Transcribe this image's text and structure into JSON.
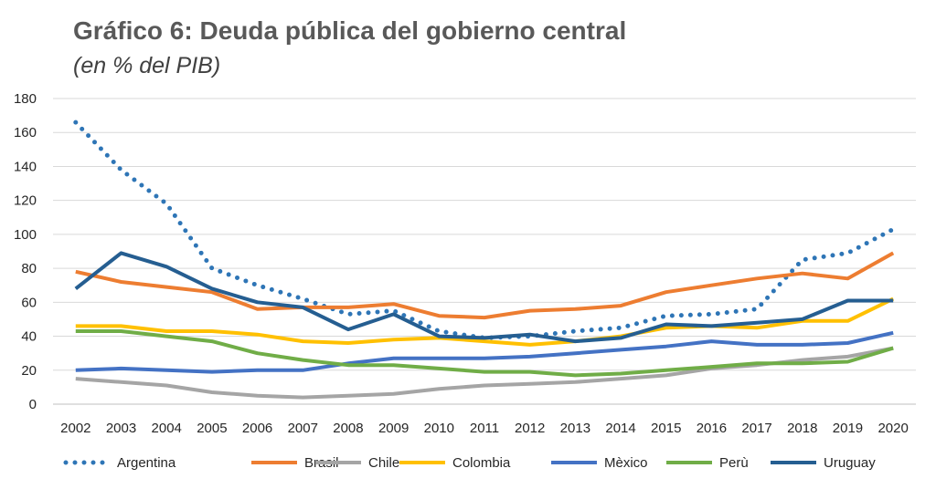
{
  "title": "Gráfico 6: Deuda pública del gobierno central",
  "subtitle": "(en % del PIB)",
  "chart_data": {
    "type": "line",
    "x": [
      "2002",
      "2003",
      "2004",
      "2005",
      "2006",
      "2007",
      "2008",
      "2009",
      "2010",
      "2011",
      "2012",
      "2013",
      "2014",
      "2015",
      "2016",
      "2017",
      "2018",
      "2019",
      "2020"
    ],
    "ylim": [
      0,
      180
    ],
    "yticks": [
      0,
      20,
      40,
      60,
      80,
      100,
      120,
      140,
      160,
      180
    ],
    "grid": true,
    "legend_position": "bottom",
    "series": [
      {
        "name": "Argentina",
        "color": "#2E75B6",
        "style": "dotted",
        "values": [
          166,
          138,
          118,
          80,
          70,
          62,
          53,
          55,
          43,
          39,
          40,
          43,
          45,
          52,
          53,
          56,
          85,
          89,
          103
        ]
      },
      {
        "name": "Brasil",
        "color": "#ED7D31",
        "style": "solid",
        "values": [
          78,
          72,
          69,
          66,
          56,
          57,
          57,
          59,
          52,
          51,
          55,
          56,
          58,
          66,
          70,
          74,
          77,
          74,
          89
        ]
      },
      {
        "name": "Chile",
        "color": "#A5A5A5",
        "style": "solid",
        "values": [
          15,
          13,
          11,
          7,
          5,
          4,
          5,
          6,
          9,
          11,
          12,
          13,
          15,
          17,
          21,
          23,
          26,
          28,
          33
        ]
      },
      {
        "name": "Colombia",
        "color": "#FFC000",
        "style": "solid",
        "values": [
          46,
          46,
          43,
          43,
          41,
          37,
          36,
          38,
          39,
          37,
          35,
          37,
          40,
          45,
          46,
          45,
          49,
          49,
          62
        ]
      },
      {
        "name": "Mèxico",
        "color": "#4472C4",
        "style": "solid",
        "values": [
          20,
          21,
          20,
          19,
          20,
          20,
          24,
          27,
          27,
          27,
          28,
          30,
          32,
          34,
          37,
          35,
          35,
          36,
          42
        ]
      },
      {
        "name": "Perù",
        "color": "#70AD47",
        "style": "solid",
        "values": [
          43,
          43,
          40,
          37,
          30,
          26,
          23,
          23,
          21,
          19,
          19,
          17,
          18,
          20,
          22,
          24,
          24,
          25,
          33
        ]
      },
      {
        "name": "Uruguay",
        "color": "#255E91",
        "style": "solid",
        "values": [
          68,
          89,
          81,
          68,
          60,
          57,
          44,
          53,
          40,
          39,
          41,
          37,
          39,
          47,
          46,
          48,
          50,
          61,
          61
        ]
      }
    ]
  }
}
